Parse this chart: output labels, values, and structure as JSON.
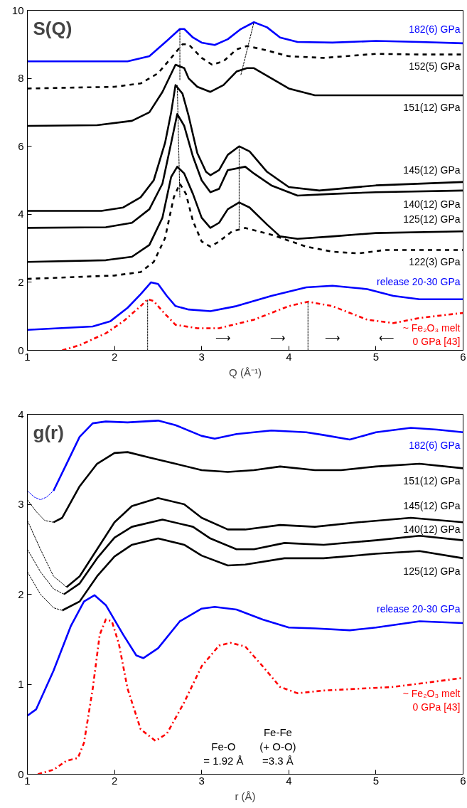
{
  "chart_data": [
    {
      "type": "line",
      "title": "S(Q)",
      "xlabel": "Q (Å⁻¹)",
      "xlim": [
        1,
        6
      ],
      "ylim": [
        0,
        10
      ],
      "xticks": [
        1,
        2,
        3,
        4,
        5,
        6
      ],
      "yticks": [
        0,
        2,
        4,
        6,
        8,
        10
      ],
      "grid": false,
      "series": [
        {
          "name": "182(6) GPa",
          "color": "#0000ff",
          "line_style": "solid",
          "x": [
            1,
            2.15,
            2.4,
            2.6,
            2.75,
            2.8,
            2.9,
            3.0,
            3.15,
            3.3,
            3.45,
            3.6,
            3.75,
            3.9,
            4.1,
            4.5,
            5.0,
            5.5,
            6
          ],
          "values": [
            8.5,
            8.5,
            8.65,
            9.1,
            9.45,
            9.45,
            9.2,
            9.05,
            8.98,
            9.15,
            9.45,
            9.65,
            9.5,
            9.2,
            9.07,
            9.05,
            9.1,
            9.07,
            9.03
          ]
        },
        {
          "name": "152(5) GPa",
          "color": "#000000",
          "line_style": "dashed",
          "x": [
            1,
            2.0,
            2.3,
            2.5,
            2.65,
            2.78,
            2.85,
            3.0,
            3.12,
            3.25,
            3.4,
            3.52,
            3.7,
            4.0,
            4.4,
            5.0,
            5.5,
            6
          ],
          "values": [
            7.7,
            7.75,
            7.85,
            8.15,
            8.6,
            9.0,
            9.0,
            8.6,
            8.4,
            8.5,
            8.85,
            8.95,
            8.85,
            8.65,
            8.6,
            8.72,
            8.7,
            8.7
          ]
        },
        {
          "name": "151(12) GPa",
          "color": "#000000",
          "line_style": "solid",
          "x": [
            1,
            1.8,
            2.2,
            2.4,
            2.55,
            2.7,
            2.8,
            2.85,
            2.95,
            3.1,
            3.25,
            3.4,
            3.52,
            3.6,
            3.8,
            4.0,
            4.3,
            5,
            6
          ],
          "values": [
            6.6,
            6.62,
            6.75,
            7.0,
            7.6,
            8.4,
            8.3,
            8.0,
            7.75,
            7.6,
            7.8,
            8.2,
            8.3,
            8.3,
            8.0,
            7.7,
            7.5,
            7.5,
            7.5
          ]
        },
        {
          "name": "145(12) GPa",
          "color": "#000000",
          "line_style": "solid",
          "x": [
            1,
            1.85,
            2.1,
            2.3,
            2.45,
            2.58,
            2.65,
            2.7,
            2.78,
            2.85,
            2.95,
            3.05,
            3.1,
            3.2,
            3.3,
            3.43,
            3.55,
            3.75,
            4.0,
            4.35,
            5,
            6
          ],
          "values": [
            4.1,
            4.1,
            4.2,
            4.5,
            5.0,
            6.1,
            7.0,
            7.8,
            7.55,
            6.9,
            5.8,
            5.25,
            5.15,
            5.3,
            5.75,
            6.0,
            5.85,
            5.25,
            4.8,
            4.7,
            4.85,
            4.95
          ]
        },
        {
          "name": "140(12) GPa",
          "color": "#000000",
          "line_style": "solid",
          "x": [
            1,
            1.9,
            2.2,
            2.4,
            2.55,
            2.65,
            2.72,
            2.8,
            2.9,
            3.0,
            3.1,
            3.2,
            3.3,
            3.5,
            3.6,
            3.8,
            4.1,
            4.5,
            5,
            6
          ],
          "values": [
            3.6,
            3.62,
            3.75,
            4.15,
            4.9,
            6.1,
            6.95,
            6.6,
            5.7,
            5.0,
            4.65,
            4.75,
            5.3,
            5.4,
            5.2,
            4.85,
            4.55,
            4.6,
            4.65,
            4.7
          ]
        },
        {
          "name": "125(12) GPa",
          "color": "#000000",
          "line_style": "solid",
          "x": [
            1,
            1.9,
            2.2,
            2.4,
            2.55,
            2.65,
            2.72,
            2.8,
            2.9,
            3.0,
            3.1,
            3.2,
            3.3,
            3.43,
            3.55,
            3.75,
            3.9,
            4.1,
            4.5,
            5,
            6
          ],
          "values": [
            2.6,
            2.65,
            2.75,
            3.1,
            3.9,
            5.1,
            5.4,
            5.2,
            4.6,
            3.9,
            3.6,
            3.75,
            4.15,
            4.35,
            4.2,
            3.7,
            3.35,
            3.28,
            3.35,
            3.45,
            3.5
          ]
        },
        {
          "name": "122(3) GPa",
          "color": "#000000",
          "line_style": "dashed",
          "x": [
            1,
            2.0,
            2.3,
            2.45,
            2.58,
            2.68,
            2.75,
            2.82,
            2.9,
            3.0,
            3.1,
            3.2,
            3.35,
            3.5,
            3.8,
            4.2,
            4.5,
            4.8,
            5.1,
            6
          ],
          "values": [
            2.1,
            2.2,
            2.3,
            2.6,
            3.3,
            4.5,
            4.9,
            4.6,
            3.8,
            3.2,
            3.05,
            3.2,
            3.5,
            3.6,
            3.4,
            3.05,
            2.9,
            2.85,
            2.95,
            2.95
          ]
        },
        {
          "name": "release 20-30 GPa",
          "color": "#0000ff",
          "line_style": "solid",
          "x": [
            1,
            1.75,
            1.95,
            2.15,
            2.3,
            2.42,
            2.5,
            2.6,
            2.7,
            2.85,
            3.1,
            3.4,
            3.8,
            4.2,
            4.5,
            4.9,
            5.2,
            5.5,
            6
          ],
          "values": [
            0.6,
            0.7,
            0.85,
            1.25,
            1.65,
            2.0,
            1.95,
            1.6,
            1.3,
            1.2,
            1.15,
            1.3,
            1.6,
            1.85,
            1.9,
            1.8,
            1.6,
            1.5,
            1.5
          ]
        },
        {
          "name": "~ Fe₂O₃ melt\n0 GPa [43]",
          "color": "#ff0000",
          "line_style": "dashdot",
          "x": [
            1.4,
            1.6,
            1.9,
            2.1,
            2.3,
            2.38,
            2.45,
            2.55,
            2.7,
            2.95,
            3.2,
            3.6,
            4.0,
            4.22,
            4.5,
            4.9,
            5.2,
            5.5,
            6
          ],
          "values": [
            0,
            0.15,
            0.5,
            0.85,
            1.3,
            1.5,
            1.45,
            1.15,
            0.75,
            0.65,
            0.65,
            0.9,
            1.3,
            1.43,
            1.3,
            0.9,
            0.8,
            0.95,
            1.1
          ]
        },
        {
          "color": "#000000",
          "line_style": "dashed",
          "x": [
            2.75,
            2.75
          ],
          "values": [
            7.95,
            9.45
          ]
        },
        {
          "color": "#000000",
          "line_style": "dashed",
          "x": [
            3.45,
            3.6
          ],
          "values": [
            8.1,
            9.65
          ]
        },
        {
          "color": "#000000",
          "line_style": "dashed",
          "x": [
            2.72,
            2.75
          ],
          "values": [
            7.8,
            4.5
          ]
        },
        {
          "color": "#000000",
          "line_style": "dashed",
          "x": [
            3.43,
            3.43
          ],
          "values": [
            3.6,
            6.0
          ]
        },
        {
          "color": "#000000",
          "line_style": "dashed",
          "x": [
            2.38,
            2.38
          ],
          "values": [
            0,
            1.5
          ]
        },
        {
          "color": "#000000",
          "line_style": "dashed",
          "x": [
            4.22,
            4.22
          ],
          "values": [
            0,
            1.43
          ]
        }
      ],
      "annotations": [
        "⟶",
        "⟶",
        "⟶",
        "⟵"
      ]
    },
    {
      "type": "line",
      "title": "g(r)",
      "xlabel": "r (Å)",
      "xlim": [
        1,
        6
      ],
      "ylim": [
        0,
        4
      ],
      "xticks": [
        1,
        2,
        3,
        4,
        5,
        6
      ],
      "yticks": [
        0,
        1,
        2,
        3,
        4
      ],
      "grid": false,
      "series": [
        {
          "name": "182(6) GPa",
          "color": "#0000ff",
          "line_style": "solid",
          "x": [
            1.3,
            1.45,
            1.6,
            1.75,
            1.9,
            2.15,
            2.5,
            2.7,
            3.0,
            3.15,
            3.4,
            3.8,
            4.2,
            4.4,
            4.7,
            5.0,
            5.4,
            5.7,
            6
          ],
          "values": [
            3.15,
            3.45,
            3.75,
            3.9,
            3.92,
            3.91,
            3.93,
            3.88,
            3.76,
            3.73,
            3.78,
            3.82,
            3.8,
            3.77,
            3.72,
            3.8,
            3.85,
            3.83,
            3.8
          ]
        },
        {
          "name": "151(12) GPa",
          "color": "#000000",
          "line_style": "solid",
          "x": [
            1.3,
            1.4,
            1.6,
            1.8,
            2.0,
            2.15,
            2.4,
            2.7,
            3.0,
            3.3,
            3.6,
            3.9,
            4.3,
            4.6,
            5.0,
            5.5,
            6
          ],
          "values": [
            2.8,
            2.85,
            3.2,
            3.45,
            3.57,
            3.58,
            3.52,
            3.45,
            3.38,
            3.36,
            3.38,
            3.42,
            3.38,
            3.38,
            3.42,
            3.45,
            3.4
          ]
        },
        {
          "name": "145(12) GPa",
          "color": "#000000",
          "line_style": "solid",
          "x": [
            1.45,
            1.6,
            1.8,
            2.0,
            2.2,
            2.5,
            2.8,
            3.0,
            3.3,
            3.5,
            3.9,
            4.3,
            4.8,
            5.4,
            6
          ],
          "values": [
            2.08,
            2.2,
            2.5,
            2.8,
            2.98,
            3.07,
            3.0,
            2.85,
            2.72,
            2.72,
            2.77,
            2.75,
            2.8,
            2.85,
            2.8
          ]
        },
        {
          "name": "140(12) GPa",
          "color": "#000000",
          "line_style": "solid",
          "x": [
            1.42,
            1.6,
            1.8,
            2.0,
            2.2,
            2.55,
            2.9,
            3.1,
            3.4,
            3.6,
            3.95,
            4.4,
            5.0,
            5.5,
            6
          ],
          "values": [
            2.0,
            2.12,
            2.4,
            2.63,
            2.75,
            2.83,
            2.75,
            2.62,
            2.5,
            2.5,
            2.57,
            2.55,
            2.6,
            2.65,
            2.6
          ]
        },
        {
          "name": "125(12) GPa",
          "color": "#000000",
          "line_style": "solid",
          "x": [
            1.4,
            1.6,
            1.8,
            2.0,
            2.2,
            2.5,
            2.8,
            3.0,
            3.3,
            3.5,
            3.95,
            4.4,
            5.0,
            5.5,
            6
          ],
          "values": [
            1.82,
            1.92,
            2.2,
            2.42,
            2.55,
            2.62,
            2.55,
            2.43,
            2.32,
            2.33,
            2.4,
            2.4,
            2.45,
            2.48,
            2.4
          ]
        },
        {
          "name": "release 20-30 GPa",
          "color": "#0000ff",
          "line_style": "solid",
          "x": [
            1,
            1.1,
            1.3,
            1.5,
            1.65,
            1.77,
            1.9,
            2.1,
            2.25,
            2.33,
            2.5,
            2.75,
            3.0,
            3.15,
            3.4,
            3.7,
            4.0,
            4.3,
            4.7,
            5.0,
            5.5,
            6
          ],
          "values": [
            0.65,
            0.72,
            1.15,
            1.65,
            1.92,
            1.99,
            1.88,
            1.55,
            1.32,
            1.29,
            1.4,
            1.7,
            1.84,
            1.86,
            1.83,
            1.72,
            1.63,
            1.62,
            1.6,
            1.63,
            1.7,
            1.68
          ]
        },
        {
          "name": "~ Fe₂O₃ melt\n0 GPa [43]",
          "color": "#ff0000",
          "line_style": "dashdot",
          "x": [
            1.12,
            1.3,
            1.45,
            1.58,
            1.65,
            1.75,
            1.83,
            1.9,
            1.97,
            2.05,
            2.15,
            2.3,
            2.47,
            2.6,
            2.8,
            3.0,
            3.2,
            3.33,
            3.5,
            3.7,
            3.9,
            4.1,
            4.4,
            4.8,
            5.2,
            5.6,
            6
          ],
          "values": [
            0,
            0.05,
            0.15,
            0.18,
            0.35,
            0.95,
            1.55,
            1.72,
            1.7,
            1.45,
            0.95,
            0.5,
            0.37,
            0.45,
            0.8,
            1.2,
            1.43,
            1.46,
            1.42,
            1.2,
            0.97,
            0.9,
            0.93,
            0.95,
            0.97,
            1.02,
            1.07
          ]
        },
        {
          "color": "#0000ff",
          "line_style": "dashed",
          "x": [
            1,
            1.08,
            1.15,
            1.22,
            1.3
          ],
          "values": [
            3.15,
            3.08,
            3.05,
            3.08,
            3.15
          ]
        },
        {
          "color": "#000000",
          "line_style": "dashed",
          "x": [
            1,
            1.1,
            1.2,
            1.3
          ],
          "values": [
            3.05,
            2.92,
            2.82,
            2.8
          ]
        },
        {
          "color": "#000000",
          "line_style": "dashed",
          "x": [
            1,
            1.15,
            1.3,
            1.45
          ],
          "values": [
            2.82,
            2.5,
            2.2,
            2.08
          ]
        },
        {
          "color": "#000000",
          "line_style": "dashed",
          "x": [
            1,
            1.15,
            1.3,
            1.42
          ],
          "values": [
            2.5,
            2.25,
            2.06,
            2.0
          ]
        },
        {
          "color": "#000000",
          "line_style": "dashed",
          "x": [
            1,
            1.15,
            1.3,
            1.4
          ],
          "values": [
            2.25,
            2.0,
            1.85,
            1.82
          ]
        }
      ],
      "annotations": [
        "Fe-O\n= 1.92 Å",
        "Fe-Fe\n(+ O-O)\n=3.3 Å"
      ]
    }
  ]
}
